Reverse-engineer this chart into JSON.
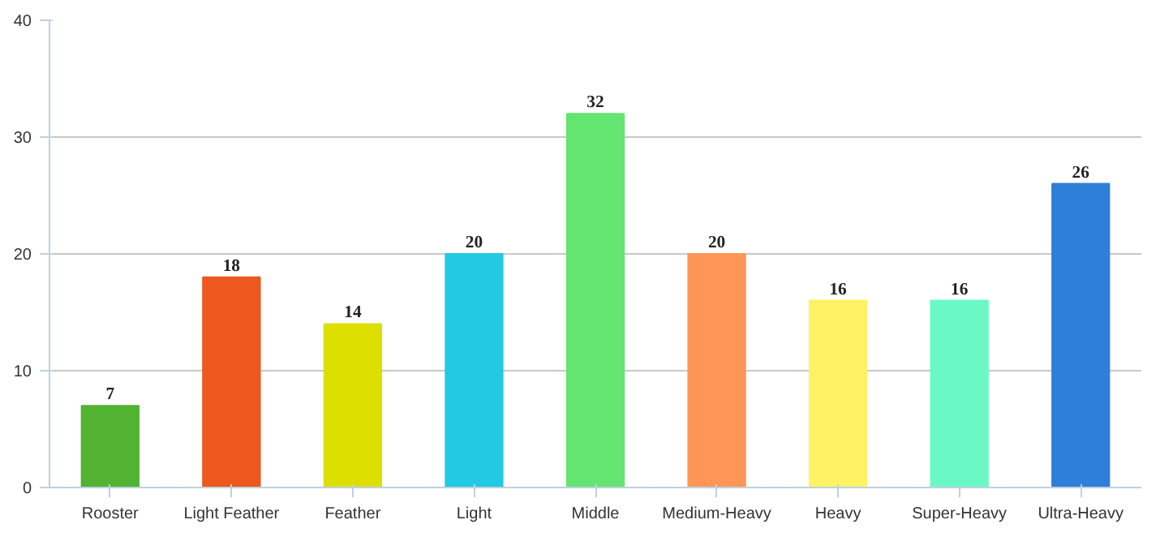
{
  "chart_data": {
    "type": "bar",
    "categories": [
      "Rooster",
      "Light Feather",
      "Feather",
      "Light",
      "Middle",
      "Medium-Heavy",
      "Heavy",
      "Super-Heavy",
      "Ultra-Heavy"
    ],
    "values": [
      7,
      18,
      14,
      20,
      32,
      20,
      16,
      16,
      26
    ],
    "colors": [
      "#52b231",
      "#ec581d",
      "#dddf00",
      "#22c9e3",
      "#64e572",
      "#ff9655",
      "#fff263",
      "#6af9c4",
      "#2d7fd8"
    ],
    "ylim": [
      0,
      40
    ],
    "yticks": [
      0,
      10,
      20,
      30,
      40
    ],
    "grid": "y",
    "data_labels": true
  }
}
